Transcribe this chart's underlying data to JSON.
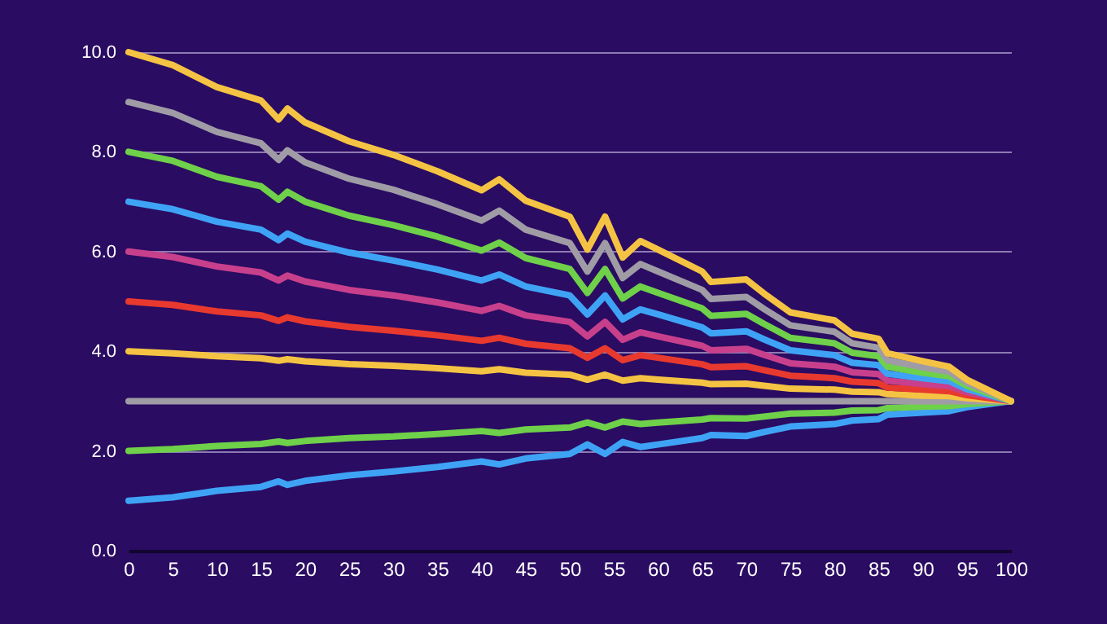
{
  "chart_data": {
    "type": "line",
    "x": [
      0,
      5,
      10,
      15,
      17,
      18,
      20,
      25,
      30,
      35,
      40,
      42,
      45,
      50,
      52,
      54,
      56,
      58,
      60,
      65,
      66,
      70,
      72,
      75,
      80,
      82,
      85,
      86,
      90,
      93,
      95,
      100
    ],
    "xlim": [
      0,
      100
    ],
    "xticks": [
      0,
      5,
      10,
      15,
      20,
      25,
      30,
      35,
      40,
      45,
      50,
      55,
      60,
      65,
      70,
      75,
      80,
      85,
      90,
      95,
      100
    ],
    "ylim": [
      0,
      10
    ],
    "yticks": [
      {
        "value": 0,
        "label": "0.0"
      },
      {
        "value": 2,
        "label": "2.0"
      },
      {
        "value": 4,
        "label": "4.0"
      },
      {
        "value": 6,
        "label": "6.0"
      },
      {
        "value": 8,
        "label": "8.0"
      },
      {
        "value": 10,
        "label": "10.0"
      }
    ],
    "grid": "y",
    "series": [
      {
        "color": "#3fa3f5",
        "values": [
          1,
          1.07,
          1.2,
          1.28,
          1.39,
          1.32,
          1.4,
          1.51,
          1.59,
          1.68,
          1.79,
          1.73,
          1.85,
          1.94,
          2.13,
          1.94,
          2.18,
          2.08,
          2.13,
          2.26,
          2.32,
          2.3,
          2.38,
          2.49,
          2.54,
          2.61,
          2.64,
          2.73,
          2.77,
          2.8,
          2.88,
          3
        ]
      },
      {
        "color": "#6fd04a",
        "values": [
          2,
          2.04,
          2.1,
          2.14,
          2.19,
          2.16,
          2.2,
          2.26,
          2.29,
          2.34,
          2.4,
          2.36,
          2.43,
          2.47,
          2.57,
          2.47,
          2.59,
          2.54,
          2.57,
          2.63,
          2.66,
          2.65,
          2.69,
          2.75,
          2.77,
          2.81,
          2.82,
          2.86,
          2.89,
          2.9,
          2.94,
          3
        ]
      },
      {
        "color": "#a09ca6",
        "values": [
          3,
          3,
          3,
          3,
          3,
          3,
          3,
          3,
          3,
          3,
          3,
          3,
          3,
          3,
          3,
          3,
          3,
          3,
          3,
          3,
          3,
          3,
          3,
          3,
          3,
          3,
          3,
          3,
          3,
          3,
          3,
          3
        ]
      },
      {
        "color": "#f5c343",
        "values": [
          4,
          3.96,
          3.9,
          3.86,
          3.81,
          3.84,
          3.8,
          3.74,
          3.71,
          3.66,
          3.6,
          3.64,
          3.57,
          3.53,
          3.43,
          3.53,
          3.41,
          3.46,
          3.43,
          3.37,
          3.34,
          3.35,
          3.31,
          3.25,
          3.23,
          3.19,
          3.18,
          3.14,
          3.11,
          3.1,
          3.06,
          3
        ]
      },
      {
        "color": "#e8392f",
        "values": [
          5,
          4.93,
          4.8,
          4.72,
          4.61,
          4.68,
          4.6,
          4.49,
          4.41,
          4.32,
          4.21,
          4.27,
          4.15,
          4.06,
          3.87,
          4.06,
          3.82,
          3.92,
          3.87,
          3.74,
          3.68,
          3.7,
          3.62,
          3.51,
          3.46,
          3.39,
          3.36,
          3.27,
          3.23,
          3.2,
          3.12,
          3
        ]
      },
      {
        "color": "#c8408c",
        "values": [
          6,
          5.89,
          5.7,
          5.58,
          5.42,
          5.52,
          5.4,
          5.23,
          5.12,
          4.98,
          4.81,
          4.91,
          4.72,
          4.59,
          4.3,
          4.59,
          4.23,
          4.38,
          4.3,
          4.11,
          4.02,
          4.05,
          3.93,
          3.76,
          3.69,
          3.58,
          3.54,
          3.41,
          3.34,
          3.3,
          3.18,
          3
        ]
      },
      {
        "color": "#3fa3f5",
        "values": [
          7,
          6.85,
          6.6,
          6.44,
          6.23,
          6.36,
          6.2,
          5.98,
          5.82,
          5.64,
          5.42,
          5.54,
          5.3,
          5.12,
          4.74,
          5.12,
          4.64,
          4.84,
          4.74,
          4.48,
          4.36,
          4.4,
          4.24,
          4.02,
          3.92,
          3.77,
          3.72,
          3.55,
          3.46,
          3.4,
          3.24,
          3
        ]
      },
      {
        "color": "#6fd04a",
        "values": [
          8,
          7.82,
          7.5,
          7.31,
          7.04,
          7.2,
          7.0,
          6.72,
          6.53,
          6.3,
          6.02,
          6.18,
          5.87,
          5.65,
          5.17,
          5.65,
          5.06,
          5.3,
          5.17,
          4.86,
          4.71,
          4.75,
          4.55,
          4.27,
          4.16,
          3.97,
          3.9,
          3.69,
          3.57,
          3.5,
          3.31,
          3
        ]
      },
      {
        "color": "#a09ca6",
        "values": [
          9,
          8.78,
          8.4,
          8.17,
          7.84,
          8.03,
          7.79,
          7.46,
          7.24,
          6.95,
          6.62,
          6.82,
          6.44,
          6.17,
          5.6,
          6.17,
          5.47,
          5.75,
          5.6,
          5.23,
          5.05,
          5.09,
          4.85,
          4.52,
          4.39,
          4.16,
          4.07,
          3.82,
          3.68,
          3.59,
          3.37,
          3
        ]
      },
      {
        "color": "#f5c343",
        "values": [
          10,
          9.74,
          9.3,
          9.03,
          8.65,
          8.87,
          8.59,
          8.21,
          7.94,
          7.61,
          7.23,
          7.45,
          7.02,
          6.7,
          6.04,
          6.7,
          5.88,
          6.21,
          6.04,
          5.6,
          5.39,
          5.44,
          5.16,
          4.78,
          4.62,
          4.35,
          4.25,
          3.96,
          3.8,
          3.69,
          3.43,
          3
        ]
      }
    ]
  }
}
